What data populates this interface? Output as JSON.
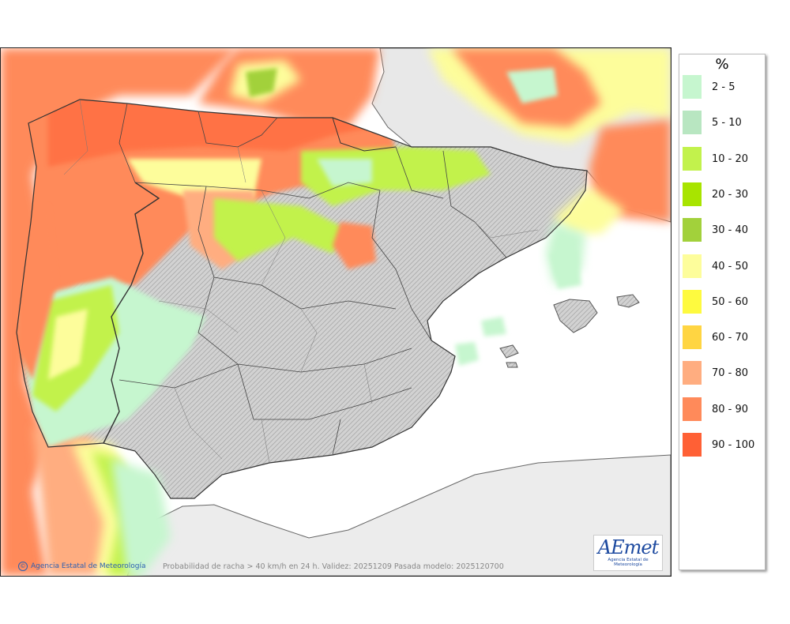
{
  "legend": {
    "title": "%",
    "items": [
      {
        "label": "2 - 5",
        "color": "#c6f6cf"
      },
      {
        "label": "5 - 10",
        "color": "#b8e6c1"
      },
      {
        "label": "10 - 20",
        "color": "#c2f24c"
      },
      {
        "label": "20 - 30",
        "color": "#a8e400"
      },
      {
        "label": "30 - 40",
        "color": "#a2d13b"
      },
      {
        "label": "40 - 50",
        "color": "#fdfd9b"
      },
      {
        "label": "50 - 60",
        "color": "#fefa3f"
      },
      {
        "label": "60 - 70",
        "color": "#ffd542"
      },
      {
        "label": "70 - 80",
        "color": "#ffad80"
      },
      {
        "label": "80 - 90",
        "color": "#ff8a5a"
      },
      {
        "label": "90 - 100",
        "color": "#ff6035"
      }
    ]
  },
  "footer": {
    "credit": "Agencia Estatal de Meteorología",
    "caption": "Probabilidad de racha > 40 km/h en 24 h. Validez: 20251209 Pasada modelo: 2025120700"
  },
  "logo": {
    "wordmark": "AEmet",
    "subtitle": "Agencia Estatal de Meteorología"
  }
}
